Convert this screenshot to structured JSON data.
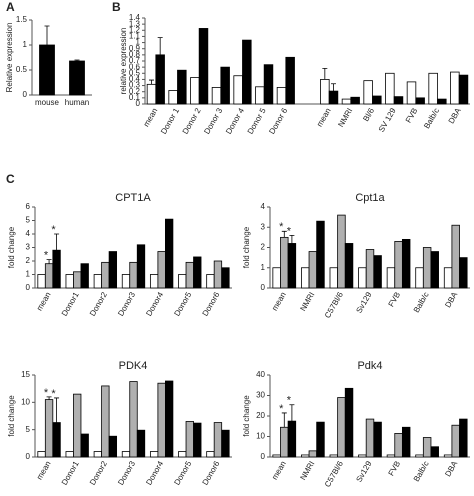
{
  "chart_data": [
    {
      "type": "bar",
      "panel": "A",
      "y_label": "Relative expression",
      "categories": [
        "mouse",
        "human"
      ],
      "values": [
        1.0,
        0.68
      ],
      "errors": [
        0.38,
        0.02
      ],
      "color": "#000000",
      "ylim": [
        0,
        1.5
      ],
      "yticks": [
        0,
        0.5,
        1,
        1.5
      ]
    },
    {
      "type": "bar",
      "panel": "B",
      "y_label": "relative expression",
      "categories": [
        "mean",
        "Donor 1",
        "Donor 2",
        "Donor 3",
        "Donor 4",
        "Donor 5",
        "Donor 6",
        null,
        "mean",
        "NMRI",
        "Bl/6",
        "SV 129",
        "FVB",
        "Balb/c",
        "DBA"
      ],
      "series": [
        {
          "color": "#ffffff",
          "values": [
            0.32,
            0.22,
            0.43,
            0.27,
            0.46,
            0.28,
            0.27,
            null,
            0.4,
            0.08,
            0.38,
            0.5,
            0.36,
            0.5,
            0.52
          ],
          "errors": [
            0.07,
            null,
            null,
            null,
            null,
            null,
            null,
            null,
            0.18,
            null,
            null,
            null,
            null,
            null,
            null
          ]
        },
        {
          "color": "#000000",
          "values": [
            0.8,
            0.55,
            1.23,
            0.6,
            1.04,
            0.64,
            0.76,
            null,
            0.21,
            0.11,
            0.13,
            0.12,
            0.1,
            0.08,
            0.47
          ],
          "errors": [
            0.28,
            null,
            null,
            null,
            null,
            null,
            null,
            null,
            0.12,
            null,
            null,
            null,
            null,
            null,
            null
          ]
        }
      ],
      "ylim": [
        0,
        1.4
      ],
      "yticks": [
        0,
        0.1,
        0.2,
        0.3,
        0.4,
        0.5,
        0.6,
        0.7,
        0.8,
        0.9,
        1,
        1.1,
        1.2,
        1.3,
        1.4
      ]
    },
    {
      "type": "bar",
      "panel": "C",
      "title": "CPT1A",
      "y_label": "fold change",
      "categories": [
        "mean",
        "Donor1",
        "Donor2",
        "Donor3",
        "Donor4",
        "Donor5",
        "Donor6"
      ],
      "series": [
        {
          "color": "#ffffff",
          "values": [
            1,
            1,
            1,
            1,
            1,
            1,
            1
          ]
        },
        {
          "color": "#b0b0b0",
          "values": [
            1.8,
            1.2,
            1.9,
            1.9,
            2.7,
            1.9,
            2.0
          ],
          "errors": [
            0.3,
            null,
            null,
            null,
            null,
            null,
            null
          ]
        },
        {
          "color": "#000000",
          "values": [
            2.8,
            1.8,
            2.7,
            3.2,
            5.1,
            2.3,
            1.5
          ],
          "errors": [
            1.2,
            null,
            null,
            null,
            null,
            null,
            null
          ]
        }
      ],
      "annotations": [
        "*",
        "*"
      ],
      "ylim": [
        0,
        6
      ],
      "yticks": [
        0,
        1,
        2,
        3,
        4,
        5,
        6
      ]
    },
    {
      "type": "bar",
      "title": "Cpt1a",
      "y_label": "fold change",
      "categories": [
        "mean",
        "NMRI",
        "C57Bl/6",
        "Sv129",
        "FVB",
        "Balb/c",
        "DBA"
      ],
      "series": [
        {
          "color": "#ffffff",
          "values": [
            1,
            1,
            1,
            1,
            1,
            1,
            1
          ]
        },
        {
          "color": "#b0b0b0",
          "values": [
            2.5,
            1.8,
            3.6,
            1.9,
            2.3,
            2.0,
            3.1
          ],
          "errors": [
            0.3,
            null,
            null,
            null,
            null,
            null,
            null
          ]
        },
        {
          "color": "#000000",
          "values": [
            2.2,
            3.3,
            2.2,
            1.6,
            2.4,
            1.8,
            1.5
          ],
          "errors": [
            0.4,
            null,
            null,
            null,
            null,
            null,
            null
          ]
        }
      ],
      "annotations": [
        "*",
        "*"
      ],
      "ylim": [
        0,
        4
      ],
      "yticks": [
        0,
        1,
        2,
        3,
        4
      ]
    },
    {
      "type": "bar",
      "title": "PDK4",
      "y_label": "fold change",
      "categories": [
        "mean",
        "Donor1",
        "Donor2",
        "Donor3",
        "Donor4",
        "Donor5",
        "Donor6"
      ],
      "series": [
        {
          "color": "#ffffff",
          "values": [
            1,
            1,
            1,
            1,
            1,
            1,
            1
          ]
        },
        {
          "color": "#b0b0b0",
          "values": [
            10.5,
            11.5,
            13.0,
            13.8,
            13.5,
            6.5,
            6.3
          ],
          "errors": [
            0.5,
            null,
            null,
            null,
            null,
            null,
            null
          ]
        },
        {
          "color": "#000000",
          "values": [
            6.3,
            4.2,
            3.8,
            4.9,
            13.9,
            6.2,
            4.9
          ],
          "errors": [
            4.5,
            null,
            null,
            null,
            null,
            null,
            null
          ]
        }
      ],
      "annotations": [
        "*",
        "*"
      ],
      "ylim": [
        0,
        15
      ],
      "yticks": [
        0,
        5,
        10,
        15
      ]
    },
    {
      "type": "bar",
      "title": "Pdk4",
      "y_label": "fold change",
      "categories": [
        "mean",
        "NMRI",
        "C57Bl/6",
        "Sv129",
        "FVB",
        "Balb/c",
        "DBA"
      ],
      "series": [
        {
          "color": "#ffffff",
          "values": [
            1,
            1,
            1,
            1,
            1,
            1,
            1
          ]
        },
        {
          "color": "#b0b0b0",
          "values": [
            14.5,
            3,
            29,
            18.5,
            11.5,
            9.5,
            15.5
          ],
          "errors": [
            7,
            null,
            null,
            null,
            null,
            null,
            null
          ]
        },
        {
          "color": "#000000",
          "values": [
            17.5,
            17,
            33.5,
            17,
            14.5,
            5,
            18.5
          ],
          "errors": [
            8,
            null,
            null,
            null,
            null,
            null,
            null
          ]
        }
      ],
      "annotations": [
        "*",
        "*"
      ],
      "ylim": [
        0,
        40
      ],
      "yticks": [
        0,
        10,
        20,
        30,
        40
      ]
    }
  ]
}
